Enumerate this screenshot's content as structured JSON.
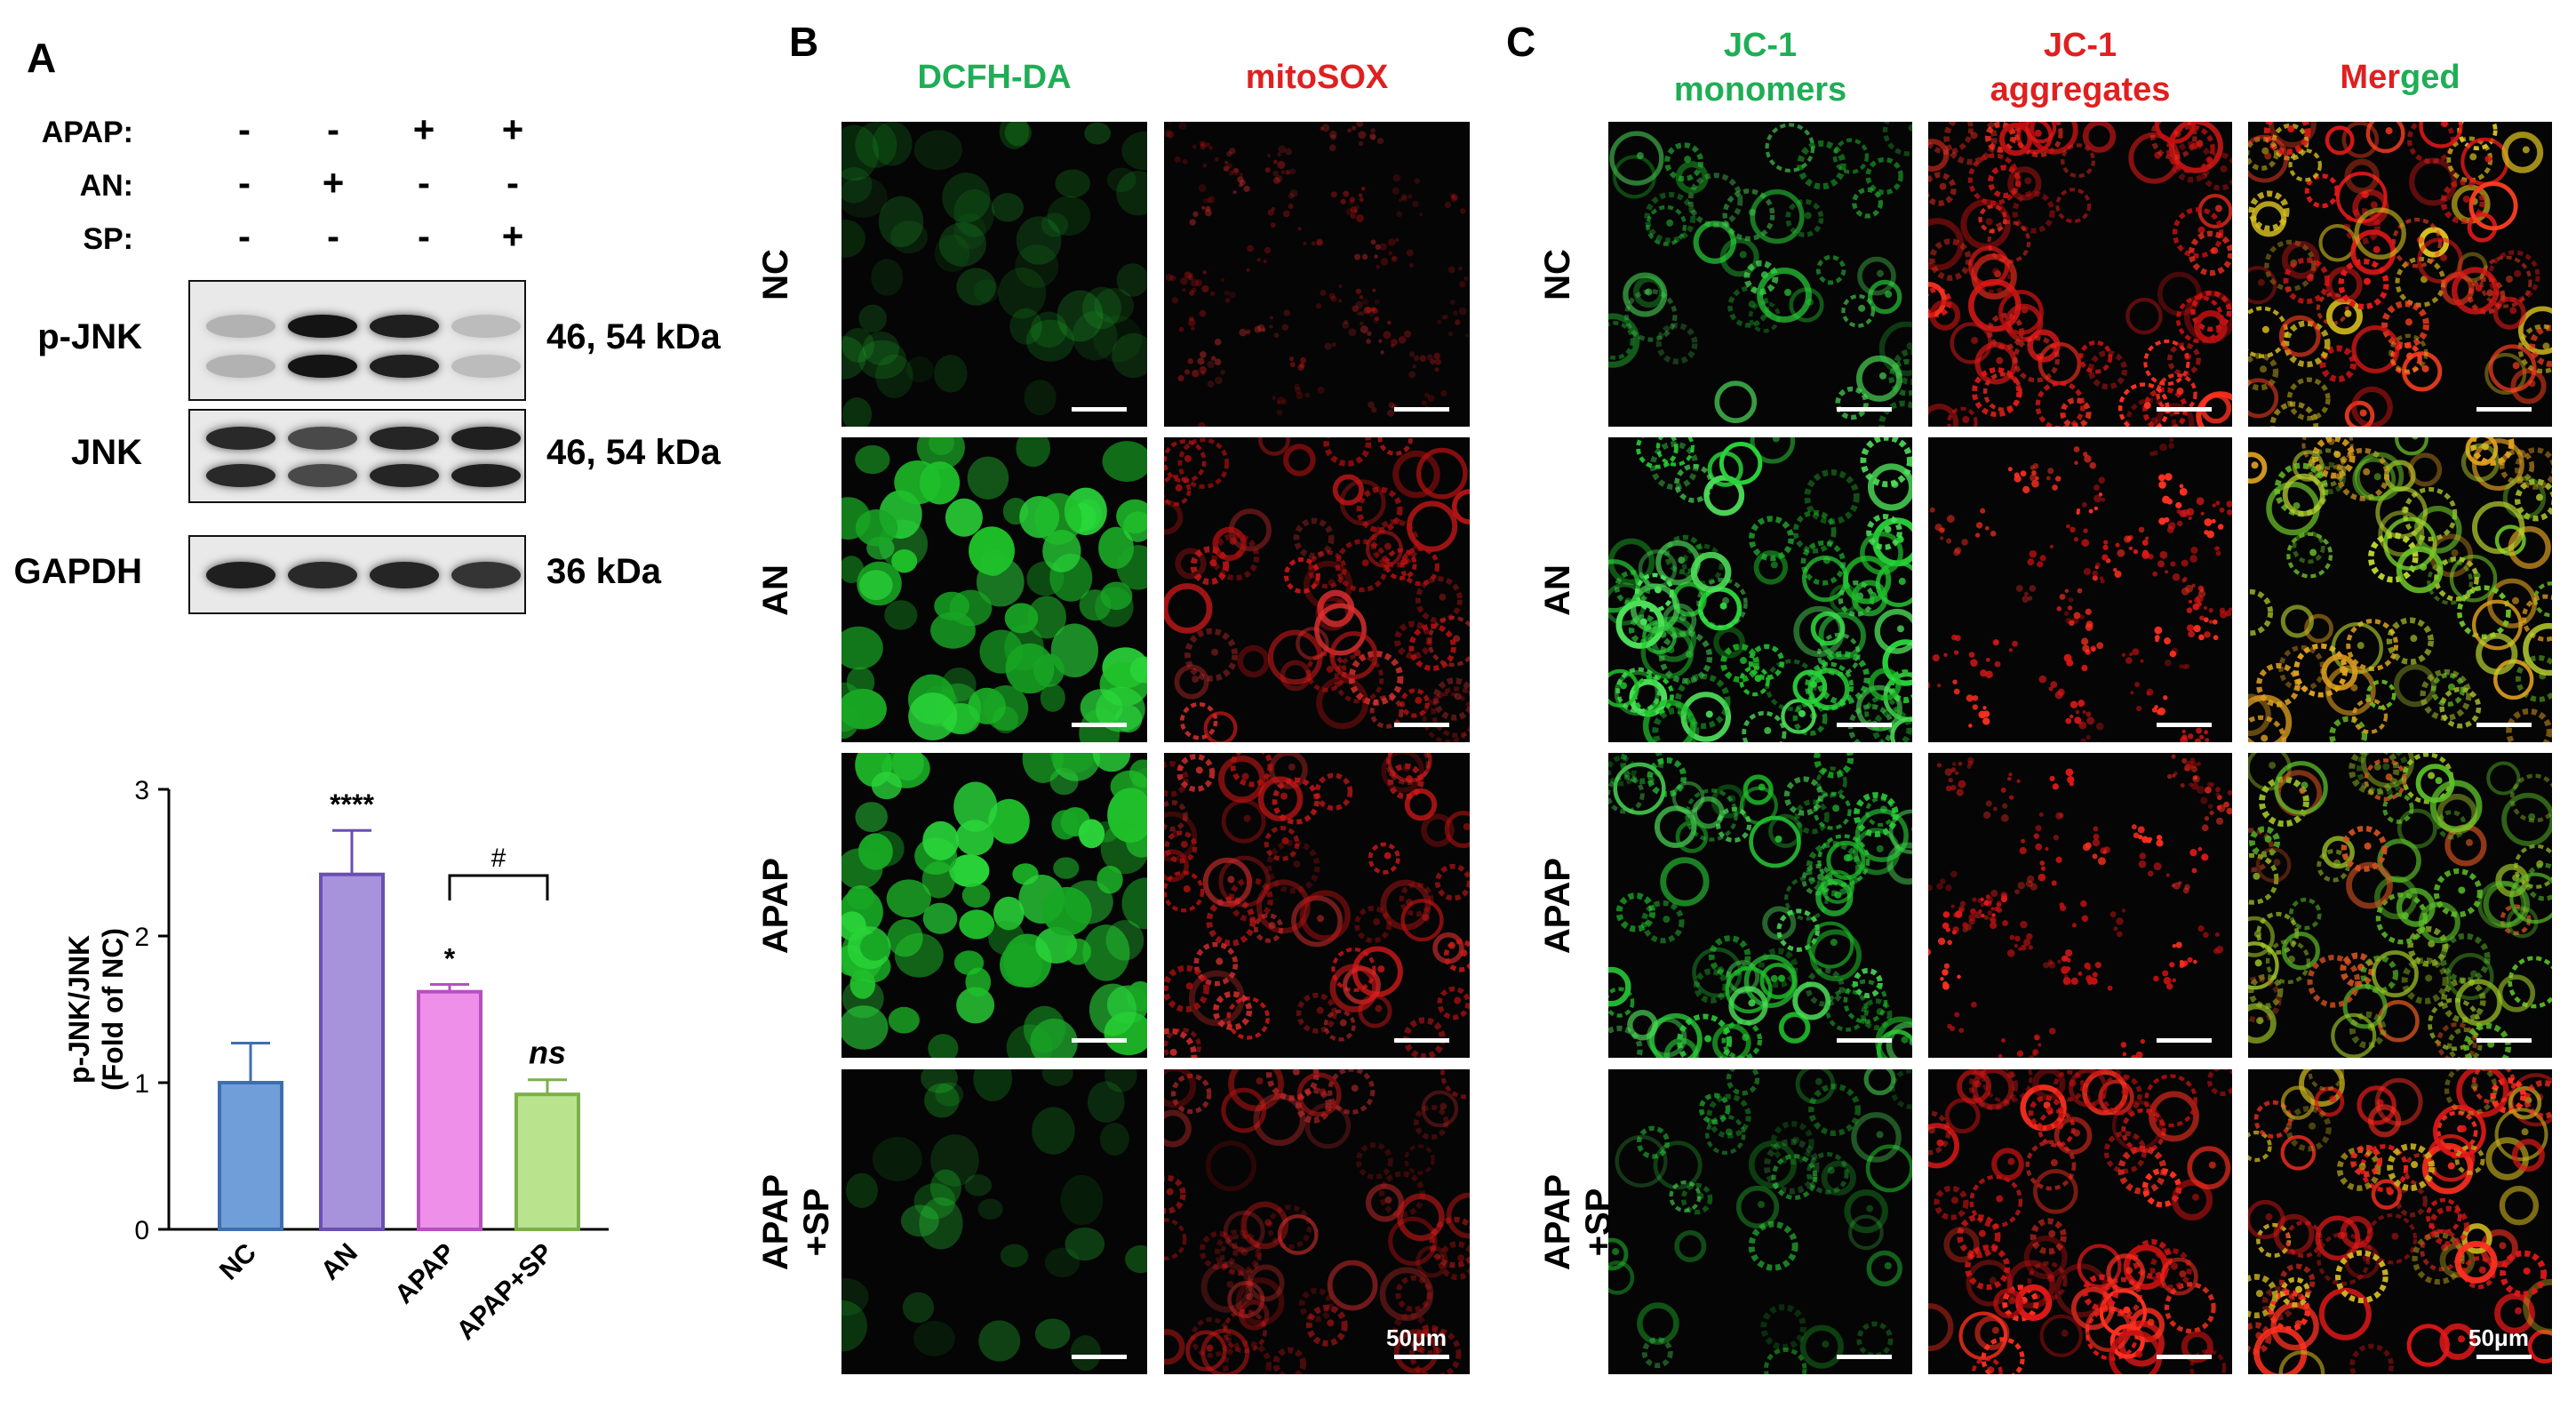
{
  "panels": {
    "a": "A",
    "b": "B",
    "c": "C"
  },
  "panelA": {
    "conditions": [
      {
        "label": "APAP:",
        "signs": [
          "-",
          "-",
          "+",
          "+"
        ]
      },
      {
        "label": "AN:",
        "signs": [
          "-",
          "+",
          "-",
          "-"
        ]
      },
      {
        "label": "SP:",
        "signs": [
          "-",
          "-",
          "-",
          "+"
        ]
      }
    ],
    "blots": [
      {
        "label": "p-JNK",
        "size": "46, 54 kDa",
        "intensity": [
          0.25,
          1.0,
          0.95,
          0.2
        ]
      },
      {
        "label": "JNK",
        "size": "46, 54 kDa",
        "intensity": [
          0.9,
          0.75,
          0.92,
          0.95
        ]
      },
      {
        "label": "GAPDH",
        "size": "36 kDa",
        "intensity": [
          0.95,
          0.9,
          0.92,
          0.85
        ]
      }
    ]
  },
  "chart_data": {
    "type": "bar",
    "categories": [
      "NC",
      "AN",
      "APAP",
      "APAP+SP"
    ],
    "values": [
      1.0,
      2.42,
      1.62,
      0.92
    ],
    "errors": [
      0.27,
      0.3,
      0.05,
      0.1
    ],
    "significance": [
      "",
      "****",
      "*",
      "ns"
    ],
    "comparison": {
      "from": "APAP",
      "to": "APAP+SP",
      "label": "#"
    },
    "ylabel": "p-JNK/JNK\n(Fold of NC)",
    "ylabel_line1": "p-JNK/JNK",
    "ylabel_line2": "(Fold of NC)",
    "ylim": [
      0,
      3
    ],
    "yticks": [
      "0",
      "1",
      "2",
      "3"
    ],
    "colors": {
      "fill": [
        "#6f9ed9",
        "#a792dc",
        "#ee90ea",
        "#b9e38c"
      ],
      "edge": [
        "#3d6fb0",
        "#6a4fb2",
        "#b84fc0",
        "#7ab04a"
      ]
    },
    "grid": false
  },
  "panelB": {
    "columns": [
      "DCFH-DA",
      "mitoSOX"
    ],
    "column_colors": [
      "#1fae56",
      "#e02020"
    ],
    "rows": [
      "NC",
      "AN",
      "APAP",
      "APAP\n+SP"
    ],
    "row_lines": [
      [
        "NC"
      ],
      [
        "AN"
      ],
      [
        "APAP"
      ],
      [
        "APAP",
        "+SP"
      ]
    ],
    "scale_label": "50μm"
  },
  "panelC": {
    "columns": [
      {
        "line1": "JC-1",
        "line2": "monomers",
        "color": "#1fae56"
      },
      {
        "line1": "JC-1",
        "line2": "aggregates",
        "color": "#e02020"
      },
      {
        "merged_part1": "Mer",
        "merged_part2": "ged",
        "color1": "#e02020",
        "color2": "#1fae56"
      }
    ],
    "rows": [
      "NC",
      "AN",
      "APAP",
      "APAP\n+SP"
    ],
    "scale_label": "50μm"
  }
}
